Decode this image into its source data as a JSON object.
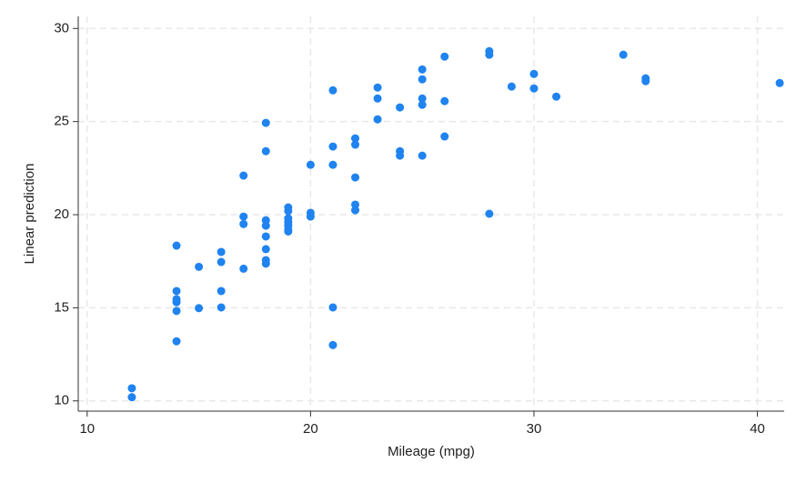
{
  "chart_data": {
    "type": "scatter",
    "x_label": "Mileage (mpg)",
    "y_label": "Linear prediction",
    "color": "#1f83f0",
    "grid": true,
    "xlim": [
      9.6,
      41.2
    ],
    "ylim": [
      9.45,
      30.65
    ],
    "xticks": [
      10,
      20,
      30,
      40
    ],
    "yticks": [
      10,
      15,
      20,
      25,
      30
    ],
    "series": [
      {
        "name": "Linear prediction",
        "color": "#1f83f0",
        "x": [
          12,
          12,
          14,
          14,
          14,
          14,
          14,
          14,
          15,
          15,
          16,
          16,
          16,
          16,
          17,
          17,
          17,
          17,
          18,
          18,
          18,
          18,
          18,
          18,
          18,
          18,
          19,
          19,
          19,
          19,
          19,
          19,
          19,
          20,
          20,
          20,
          21,
          21,
          21,
          21,
          21,
          22,
          22,
          22,
          22,
          22,
          23,
          23,
          23,
          24,
          24,
          24,
          25,
          25,
          25,
          25,
          25,
          26,
          26,
          26,
          28,
          28,
          28,
          29,
          30,
          30,
          31,
          34,
          35,
          35,
          41
        ],
        "values": [
          10.68,
          10.2,
          18.34,
          15.9,
          15.46,
          15.3,
          14.83,
          13.2,
          17.2,
          14.98,
          18.0,
          17.46,
          15.9,
          15.02,
          22.1,
          19.9,
          19.5,
          17.1,
          24.93,
          23.41,
          19.7,
          19.41,
          18.83,
          18.15,
          17.56,
          17.37,
          20.39,
          20.2,
          19.8,
          19.6,
          19.41,
          19.2,
          19.1,
          22.68,
          20.1,
          19.9,
          26.68,
          23.66,
          22.68,
          15.02,
          13.0,
          24.1,
          23.76,
          22.0,
          20.54,
          20.24,
          26.83,
          26.24,
          25.12,
          25.76,
          23.41,
          23.17,
          27.8,
          27.27,
          26.24,
          25.9,
          23.17,
          28.49,
          26.1,
          24.2,
          28.78,
          28.59,
          20.05,
          26.88,
          27.56,
          26.78,
          26.34,
          28.59,
          27.32,
          27.17,
          27.07
        ]
      }
    ]
  }
}
